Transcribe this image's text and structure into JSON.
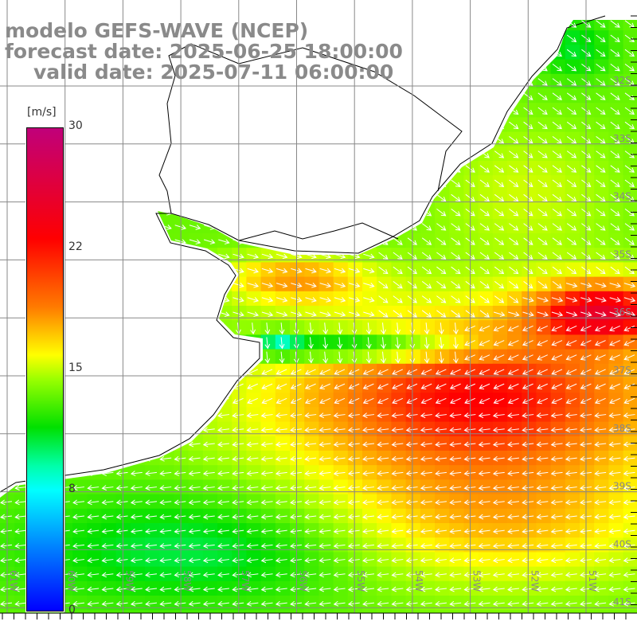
{
  "title": {
    "line1": "modelo GEFS-WAVE (NCEP)",
    "line2": "forecast date: 2025-06-25 18:00:00",
    "line3": "valid date: 2025-07-11 06:00:00"
  },
  "colorbar": {
    "unit": "[m/s]",
    "ticks": [
      "30",
      "22",
      "15",
      "8",
      "0"
    ]
  },
  "axes": {
    "lon_labels": [
      "61W",
      "60W",
      "59W",
      "58W",
      "57W",
      "56W",
      "55W",
      "54W",
      "53W",
      "52W",
      "51W"
    ],
    "lat_labels": [
      "32S",
      "33S",
      "34S",
      "35S",
      "36S",
      "37S",
      "38S",
      "39S",
      "40S",
      "41S"
    ]
  }
}
